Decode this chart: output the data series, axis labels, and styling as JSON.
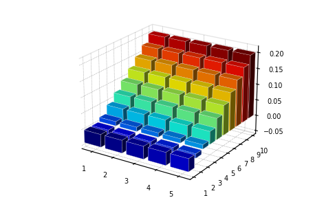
{
  "x_ticks": [
    1,
    2,
    3,
    4,
    5
  ],
  "y_ticks": [
    1,
    2,
    3,
    4,
    5,
    6,
    7,
    8,
    9,
    10
  ],
  "z_ticks": [
    -0.05,
    0,
    0.05,
    0.1,
    0.15,
    0.2
  ],
  "xlim": [
    0.5,
    5.5
  ],
  "ylim": [
    0.5,
    10.5
  ],
  "zlim": [
    -0.06,
    0.22
  ],
  "bar_width": 0.8,
  "bar_depth": 0.8,
  "elev": 22,
  "azim": -57,
  "background_color": "#ffffff",
  "colormap": "jet",
  "N_x": 5,
  "N_y": 10
}
